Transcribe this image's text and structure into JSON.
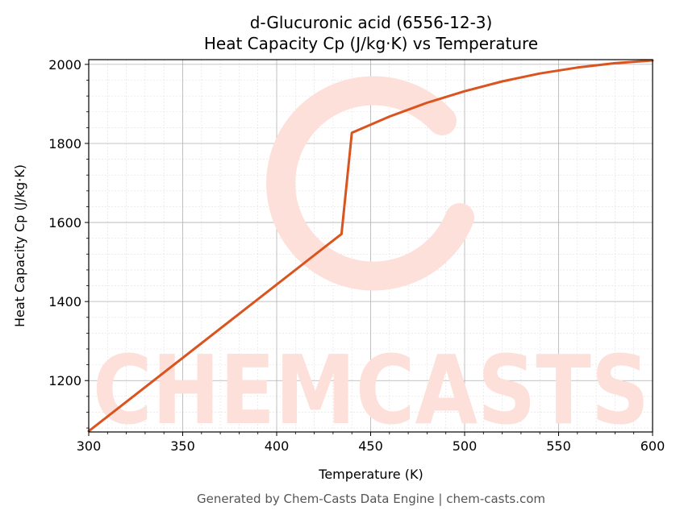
{
  "chart_data": {
    "type": "line",
    "title": "d-Glucuronic acid (6556-12-3)",
    "subtitle": "Heat Capacity Cp (J/kg·K) vs Temperature",
    "xlabel": "Temperature (K)",
    "ylabel": "Heat Capacity Cp (J/kg·K)",
    "xlim": [
      300,
      600
    ],
    "ylim": [
      1070,
      2012
    ],
    "xticks": [
      300,
      350,
      400,
      450,
      500,
      550,
      600
    ],
    "yticks": [
      1200,
      1400,
      1600,
      1800,
      2000
    ],
    "grid": true,
    "series": [
      {
        "x": [
          300,
          434.5,
          440,
          460,
          480,
          500,
          520,
          540,
          560,
          580,
          600
        ],
        "y": [
          1072,
          1571,
          1827,
          1868,
          1903,
          1932,
          1957,
          1977,
          1992,
          2003,
          2010
        ]
      }
    ],
    "colors": {
      "line": "#d9541e",
      "watermark": "#fde0d9",
      "grid_major": "#b0b0b0",
      "grid_minor": "#e0e0e0"
    }
  },
  "watermark": {
    "text": "CHEMCASTS"
  },
  "footer": {
    "text": "Generated by Chem-Casts Data Engine | chem-casts.com"
  }
}
